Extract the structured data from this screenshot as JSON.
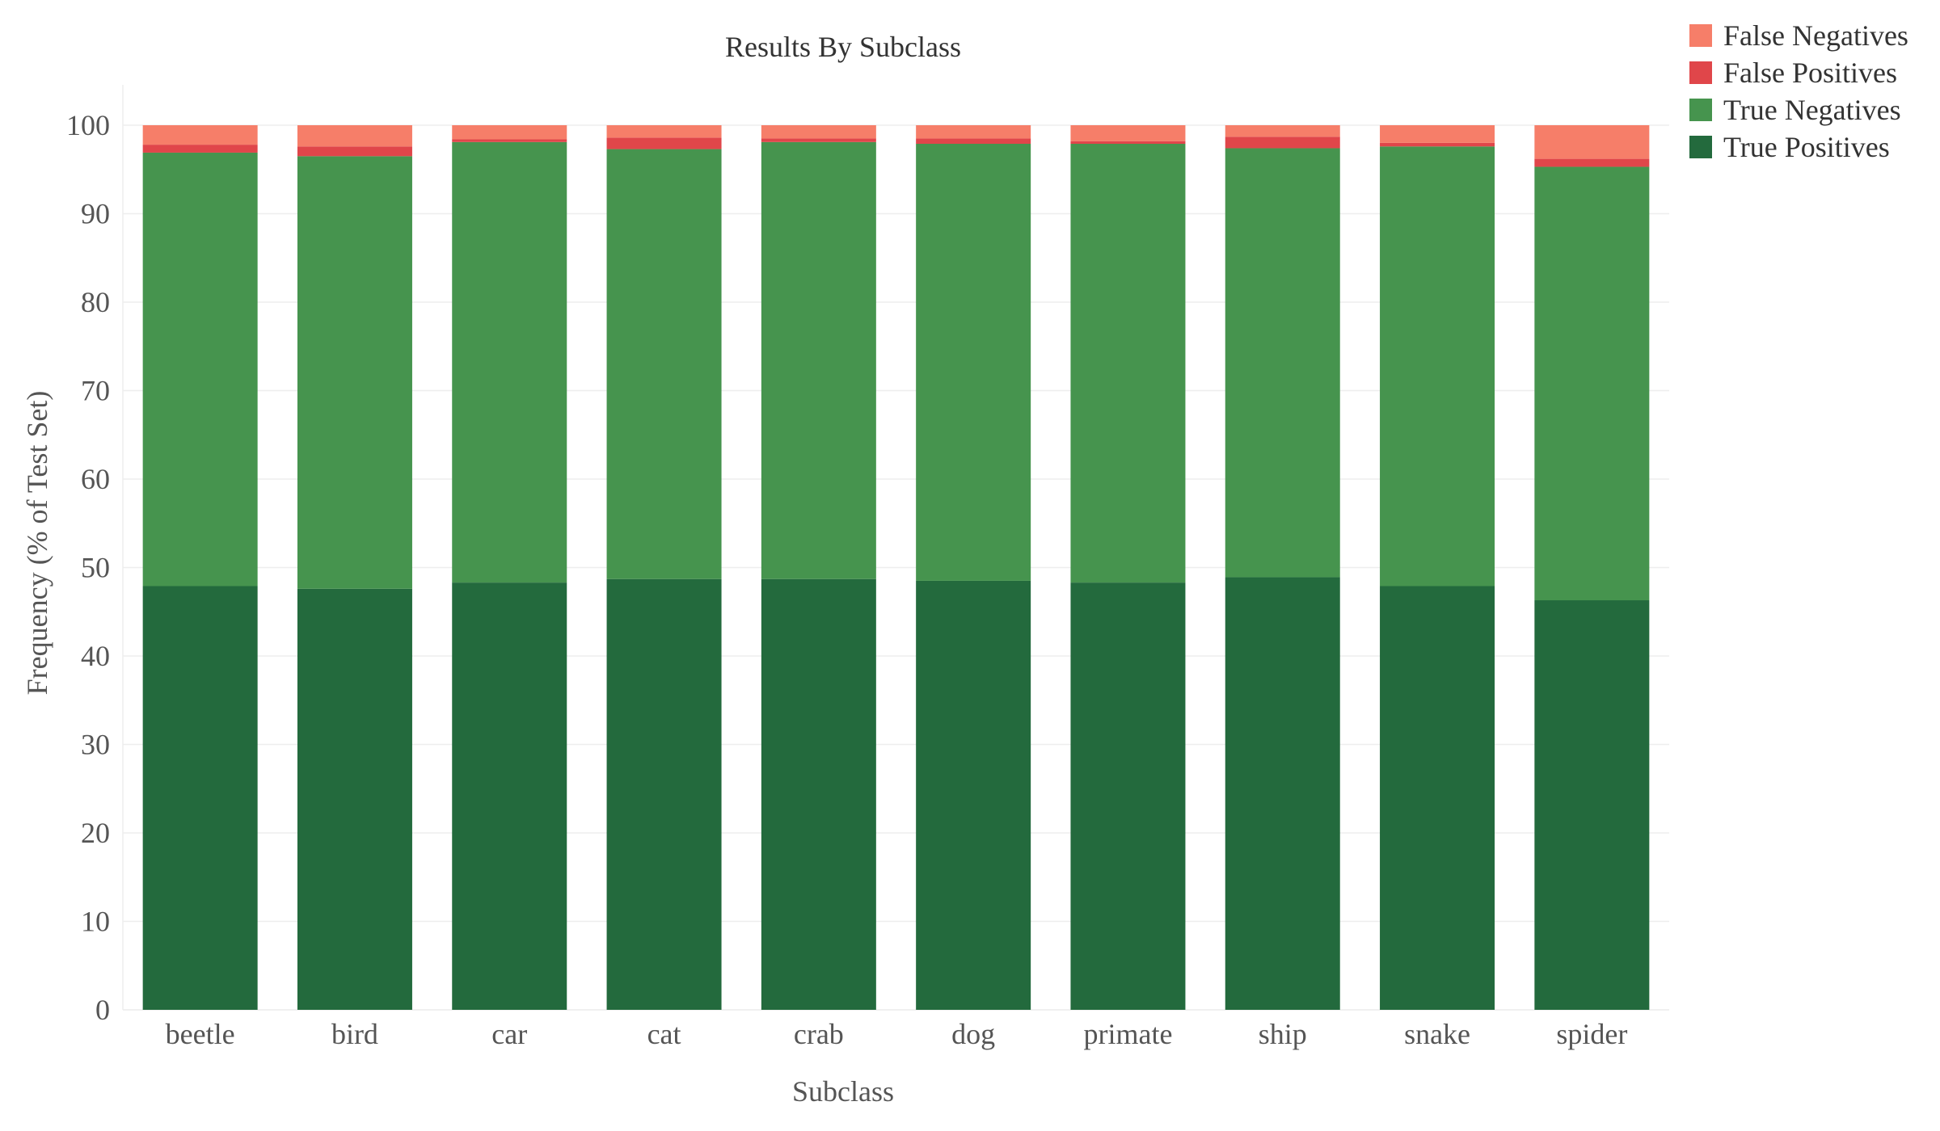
{
  "chart_data": {
    "type": "bar",
    "stacked": true,
    "title": "Results By Subclass",
    "xlabel": "Subclass",
    "ylabel": "Frequency (% of Test Set)",
    "ylim": [
      0,
      100
    ],
    "yticks": [
      0,
      10,
      20,
      30,
      40,
      50,
      60,
      70,
      80,
      90,
      100
    ],
    "grid": true,
    "legend_position": "top-right",
    "categories": [
      "beetle",
      "bird",
      "car",
      "cat",
      "crab",
      "dog",
      "primate",
      "ship",
      "snake",
      "spider"
    ],
    "series": [
      {
        "name": "True Positives",
        "color": "#236a3d",
        "values": [
          47.9,
          47.6,
          48.3,
          48.7,
          48.7,
          48.5,
          48.3,
          48.9,
          47.9,
          46.3
        ]
      },
      {
        "name": "True Negatives",
        "color": "#46944e",
        "values": [
          49.0,
          48.9,
          49.8,
          48.6,
          49.4,
          49.4,
          49.6,
          48.5,
          49.7,
          49.0
        ]
      },
      {
        "name": "False Positives",
        "color": "#e0464a",
        "values": [
          0.9,
          1.1,
          0.3,
          1.3,
          0.4,
          0.6,
          0.3,
          1.3,
          0.4,
          0.9
        ]
      },
      {
        "name": "False Negatives",
        "color": "#f67e69",
        "values": [
          2.2,
          2.4,
          1.6,
          1.4,
          1.5,
          1.5,
          1.8,
          1.3,
          2.0,
          3.8
        ]
      }
    ],
    "legend_order": [
      "False Negatives",
      "False Positives",
      "True Negatives",
      "True Positives"
    ]
  }
}
